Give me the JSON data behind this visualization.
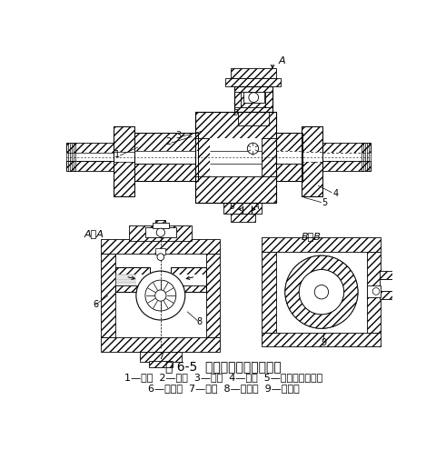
{
  "title": "图 6-5  切向式涡轮流量传感器",
  "caption_line1": "1—套筒  2—壳体  3—喷嘴  4—涡轮  5—调整刻度用槽道",
  "caption_line2": "6—照明灯  7—玻璃  8—光电管  9—调节阀",
  "bg_color": "#ffffff",
  "fig_width": 4.81,
  "fig_height": 4.95,
  "dpi": 100
}
